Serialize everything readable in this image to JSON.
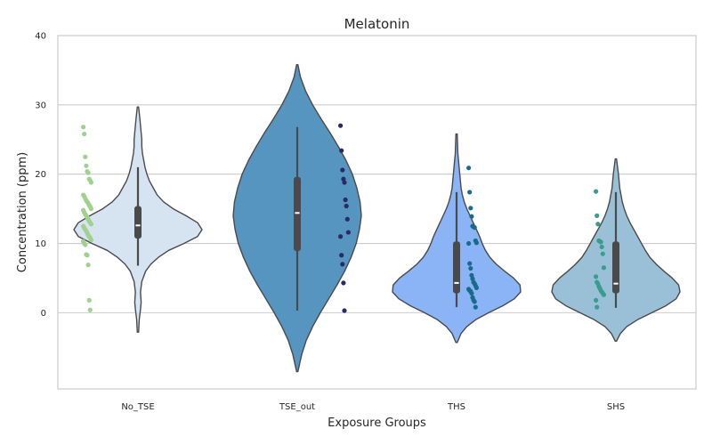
{
  "chart_data": {
    "type": "violin",
    "title": "Melatonin",
    "xlabel": "Exposure Groups",
    "ylabel": "Concentration (ppm)",
    "ylim": [
      -11,
      40
    ],
    "yticks": [
      0,
      10,
      20,
      30,
      40
    ],
    "grid": "horizontal",
    "categories": [
      "No_TSE",
      "TSE_out",
      "THS",
      "SHS"
    ],
    "series": [
      {
        "category": "No_TSE",
        "fill": "#d6e4f2",
        "point_color": "#a1d18e",
        "kde_range": [
          -2.8,
          29.7
        ],
        "density": [
          [
            -2.8,
            0.01
          ],
          [
            -1,
            0.02
          ],
          [
            0.5,
            0.04
          ],
          [
            1.5,
            0.05
          ],
          [
            3,
            0.04
          ],
          [
            4.5,
            0.06
          ],
          [
            6,
            0.12
          ],
          [
            7,
            0.2
          ],
          [
            8,
            0.32
          ],
          [
            9,
            0.48
          ],
          [
            10,
            0.72
          ],
          [
            11,
            0.93
          ],
          [
            12,
            1.0
          ],
          [
            13,
            0.93
          ],
          [
            14,
            0.75
          ],
          [
            15,
            0.55
          ],
          [
            16,
            0.4
          ],
          [
            17,
            0.3
          ],
          [
            18,
            0.24
          ],
          [
            19,
            0.18
          ],
          [
            20,
            0.14
          ],
          [
            21,
            0.11
          ],
          [
            22,
            0.09
          ],
          [
            23,
            0.07
          ],
          [
            24,
            0.06
          ],
          [
            25,
            0.06
          ],
          [
            26,
            0.05
          ],
          [
            27,
            0.04
          ],
          [
            28,
            0.03
          ],
          [
            29.7,
            0.01
          ]
        ],
        "whisker": [
          6.8,
          21
        ],
        "box": [
          10.7,
          15.4
        ],
        "median": 12.6,
        "points": [
          26.8,
          25.8,
          22.5,
          21.2,
          20.4,
          20.2,
          19.3,
          19.1,
          18.8,
          17.0,
          16.8,
          16.5,
          16.2,
          16.0,
          15.8,
          15.5,
          15.3,
          15.0,
          14.8,
          14.5,
          14.2,
          14.0,
          13.8,
          13.5,
          13.2,
          13.0,
          12.8,
          12.5,
          12.2,
          12.0,
          11.8,
          11.5,
          11.2,
          11.0,
          10.8,
          10.5,
          10.3,
          10.0,
          9.8,
          8.4,
          8.3,
          6.9,
          1.8,
          0.4
        ]
      },
      {
        "category": "TSE_out",
        "fill": "#5795c1",
        "point_color": "#2a2a64",
        "kde_range": [
          -8.5,
          35.8
        ],
        "density": [
          [
            -8.5,
            0.01
          ],
          [
            -6,
            0.07
          ],
          [
            -4,
            0.14
          ],
          [
            -2,
            0.24
          ],
          [
            0,
            0.36
          ],
          [
            2,
            0.49
          ],
          [
            4,
            0.62
          ],
          [
            6,
            0.74
          ],
          [
            8,
            0.84
          ],
          [
            10,
            0.92
          ],
          [
            12,
            0.97
          ],
          [
            14,
            1.0
          ],
          [
            16,
            0.98
          ],
          [
            18,
            0.93
          ],
          [
            20,
            0.86
          ],
          [
            22,
            0.76
          ],
          [
            24,
            0.64
          ],
          [
            26,
            0.51
          ],
          [
            28,
            0.37
          ],
          [
            30,
            0.24
          ],
          [
            32,
            0.13
          ],
          [
            34,
            0.05
          ],
          [
            35.8,
            0.01
          ]
        ],
        "whisker": [
          0.3,
          26.8
        ],
        "box": [
          8.9,
          19.6
        ],
        "median": 14.4,
        "points": [
          27.0,
          23.4,
          20.6,
          19.3,
          18.8,
          16.3,
          15.4,
          13.5,
          11.6,
          11.0,
          8.3,
          7.0,
          4.3,
          0.3
        ]
      },
      {
        "category": "THS",
        "fill": "#8ab4f5",
        "point_color": "#1a6b8a",
        "kde_range": [
          -4.3,
          25.8
        ],
        "density": [
          [
            -4.3,
            0.01
          ],
          [
            -3,
            0.07
          ],
          [
            -2,
            0.16
          ],
          [
            -1,
            0.3
          ],
          [
            0,
            0.5
          ],
          [
            1,
            0.72
          ],
          [
            2,
            0.9
          ],
          [
            3,
            1.0
          ],
          [
            4,
            0.99
          ],
          [
            5,
            0.89
          ],
          [
            6,
            0.75
          ],
          [
            7,
            0.62
          ],
          [
            8,
            0.52
          ],
          [
            9,
            0.45
          ],
          [
            10,
            0.4
          ],
          [
            11,
            0.36
          ],
          [
            12,
            0.31
          ],
          [
            13,
            0.26
          ],
          [
            14,
            0.21
          ],
          [
            15,
            0.16
          ],
          [
            16,
            0.12
          ],
          [
            17,
            0.09
          ],
          [
            18,
            0.07
          ],
          [
            19,
            0.06
          ],
          [
            20,
            0.05
          ],
          [
            21,
            0.04
          ],
          [
            22,
            0.03
          ],
          [
            23,
            0.02
          ],
          [
            25.8,
            0.01
          ]
        ],
        "whisker": [
          0.8,
          17.4
        ],
        "box": [
          2.8,
          10.3
        ],
        "median": 4.3,
        "points": [
          20.9,
          17.4,
          15.1,
          13.9,
          12.5,
          12.4,
          12.3,
          10.4,
          10.1,
          10.0,
          7.1,
          6.4,
          5.4,
          4.9,
          4.4,
          4.2,
          3.9,
          3.6,
          3.4,
          3.2,
          3.1,
          2.8,
          2.2,
          1.8,
          1.6,
          0.8
        ]
      },
      {
        "category": "SHS",
        "fill": "#9ac0d8",
        "point_color": "#3a9b8e",
        "kde_range": [
          -4.1,
          22.2
        ],
        "density": [
          [
            -4.1,
            0.01
          ],
          [
            -3,
            0.07
          ],
          [
            -2,
            0.17
          ],
          [
            -1,
            0.34
          ],
          [
            0,
            0.56
          ],
          [
            1,
            0.78
          ],
          [
            2,
            0.94
          ],
          [
            3,
            1.0
          ],
          [
            4,
            0.98
          ],
          [
            5,
            0.88
          ],
          [
            6,
            0.75
          ],
          [
            7,
            0.63
          ],
          [
            8,
            0.53
          ],
          [
            9,
            0.46
          ],
          [
            10,
            0.4
          ],
          [
            11,
            0.34
          ],
          [
            12,
            0.28
          ],
          [
            13,
            0.22
          ],
          [
            14,
            0.17
          ],
          [
            15,
            0.13
          ],
          [
            16,
            0.1
          ],
          [
            17,
            0.08
          ],
          [
            18,
            0.06
          ],
          [
            19,
            0.05
          ],
          [
            20,
            0.04
          ],
          [
            22.2,
            0.01
          ]
        ],
        "whisker": [
          0.7,
          17.4
        ],
        "box": [
          2.8,
          10.3
        ],
        "median": 4.2,
        "points": [
          17.5,
          14.0,
          12.8,
          10.4,
          10.3,
          10.2,
          9.5,
          8.5,
          6.5,
          5.2,
          4.4,
          4.2,
          3.8,
          3.5,
          3.2,
          3.0,
          2.8,
          2.6,
          1.8,
          0.8
        ]
      }
    ]
  }
}
